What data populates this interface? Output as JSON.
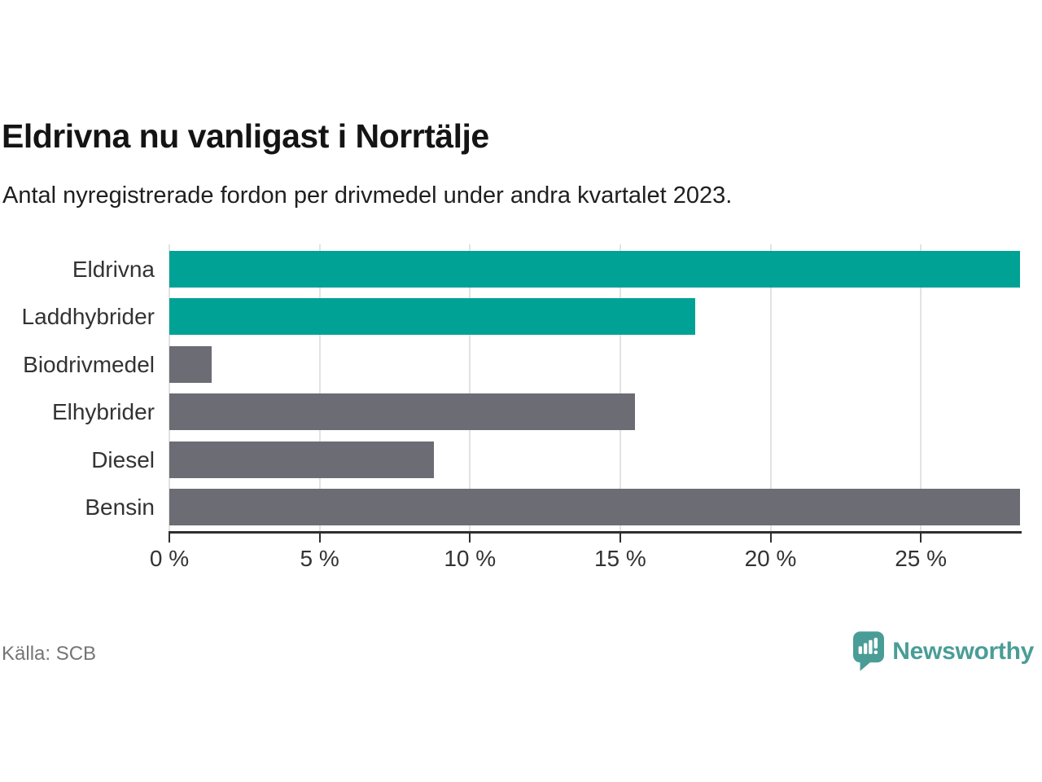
{
  "header": {
    "title": "Eldrivna nu vanligast i Norrtälje",
    "subtitle": "Antal nyregistrerade fordon per drivmedel under andra kvartalet 2023."
  },
  "chart_data": {
    "type": "bar",
    "orientation": "horizontal",
    "title": "Eldrivna nu vanligast i Norrtälje",
    "xlabel": "",
    "ylabel": "",
    "unit": "%",
    "categories": [
      "Eldrivna",
      "Laddhybrider",
      "Biodrivmedel",
      "Elhybrider",
      "Diesel",
      "Bensin"
    ],
    "values": [
      28.3,
      17.5,
      1.4,
      15.5,
      8.8,
      28.3
    ],
    "bar_colors": [
      "#00a296",
      "#00a296",
      "#6c6c74",
      "#6c6c74",
      "#6c6c74",
      "#6c6c74"
    ],
    "xlim": [
      0,
      28.3
    ],
    "x_ticks": [
      0,
      5,
      10,
      15,
      20,
      25
    ],
    "x_tick_labels": [
      "0 %",
      "5 %",
      "10 %",
      "15 %",
      "20 %",
      "25 %"
    ],
    "grid": "vertical-gridlines-on",
    "legend": "none"
  },
  "footer": {
    "source": "Källa: SCB",
    "brand": "Newsworthy"
  },
  "colors": {
    "accent_teal": "#00a296",
    "neutral_gray": "#6c6c74",
    "brand_teal": "#4a9d97",
    "gridline": "#e2e2e2",
    "axis": "#2f2f2f",
    "text_dark": "#141414",
    "text_muted": "#757575"
  }
}
